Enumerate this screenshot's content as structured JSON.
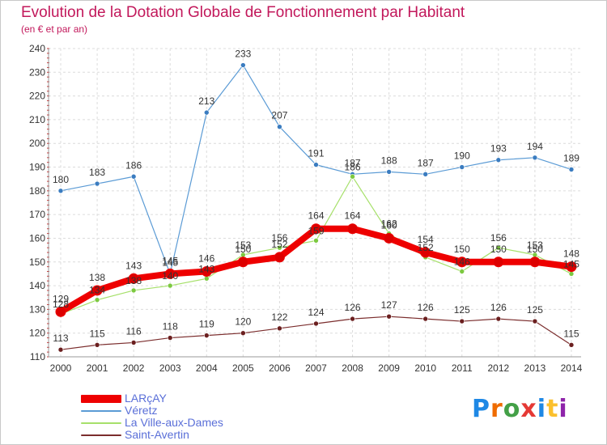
{
  "title": "Evolution de la Dotation Globale de Fonctionnement par Habitant",
  "subtitle": "(en € et par an)",
  "logo": {
    "text": "Proxiti",
    "letters": [
      "P",
      "r",
      "o",
      "x",
      "i",
      "t",
      "i"
    ],
    "colors": [
      "#1e88e5",
      "#ef6c00",
      "#43a047",
      "#e53935",
      "#1e88e5",
      "#fbc02d",
      "#8e24aa"
    ]
  },
  "chart_data": {
    "type": "line",
    "title": "Evolution de la Dotation Globale de Fonctionnement par Habitant",
    "subtitle": "(en € et par an)",
    "xlabel": "",
    "ylabel": "",
    "ylim": [
      110,
      240
    ],
    "yticks": [
      110,
      120,
      130,
      140,
      150,
      160,
      170,
      180,
      190,
      200,
      210,
      220,
      230,
      240
    ],
    "x": [
      "2000",
      "2001",
      "2002",
      "2003",
      "2004",
      "2005",
      "2006",
      "2007",
      "2008",
      "2009",
      "2010",
      "2011",
      "2012",
      "2013",
      "2014"
    ],
    "grid": true,
    "legend_position": "bottom-left",
    "series": [
      {
        "name": "Véretz",
        "color": "#5b9bd5",
        "marker": "#3a7cc0",
        "width": 1.2,
        "label_dy": -10,
        "values": [
          180,
          183,
          186,
          145,
          213,
          233,
          207,
          191,
          187,
          188,
          187,
          190,
          193,
          194,
          189
        ]
      },
      {
        "name": "La Ville-aux-Dames",
        "color": "#a6e06a",
        "marker": "#7cc940",
        "width": 1.2,
        "label_dy": -8,
        "values": [
          128,
          134,
          138,
          140,
          143,
          153,
          156,
          159,
          186,
          162,
          152,
          146,
          156,
          153,
          145
        ]
      },
      {
        "name": "Saint-Avertin",
        "color": "#7b2d2d",
        "marker": "#6b1f1f",
        "width": 1.2,
        "label_dy": -10,
        "values": [
          113,
          115,
          116,
          118,
          119,
          120,
          122,
          124,
          126,
          127,
          126,
          125,
          126,
          125,
          115
        ]
      },
      {
        "name": "LARçAY",
        "color": "#ee0000",
        "marker": "#dd0000",
        "width": 8,
        "label_dy": -12,
        "values": [
          129,
          138,
          143,
          145,
          146,
          150,
          152,
          164,
          164,
          160,
          154,
          150,
          150,
          150,
          148
        ]
      }
    ],
    "legend_order": [
      "LARçAY",
      "Véretz",
      "La Ville-aux-Dames",
      "Saint-Avertin"
    ]
  }
}
